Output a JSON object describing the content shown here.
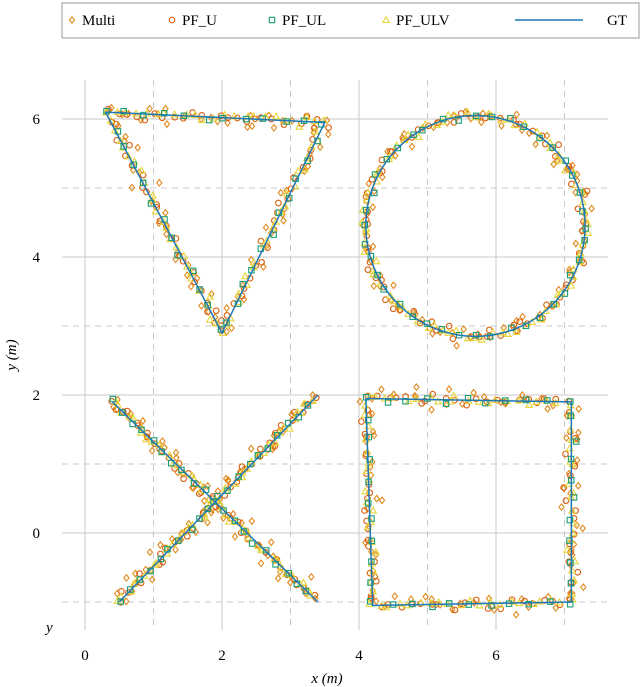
{
  "chart_data": {
    "type": "scatter",
    "xlabel": "x (m)",
    "ylabel": "y (m)",
    "stray_label": "y",
    "xlim": [
      -0.5,
      7.5
    ],
    "ylim": [
      -1.6,
      6.75
    ],
    "xticks": [
      0,
      2,
      4,
      6
    ],
    "yticks": [
      0,
      2,
      4,
      6
    ],
    "grid": "solid at integer ticks, dashed at odd integers",
    "legend": {
      "placement": "top"
    },
    "colors": {
      "multi": "#e08a1e",
      "pf_u": "#d95f0e",
      "pf_ul": "#1a9e77",
      "pf_ulv": "#e6d53a",
      "gt": "#1f77b4"
    },
    "series": [
      {
        "name": "Multi",
        "marker": "diamond",
        "color": "#e08a1e"
      },
      {
        "name": "PF_U",
        "marker": "circle",
        "color": "#d95f0e"
      },
      {
        "name": "PF_UL",
        "marker": "square",
        "color": "#1a9e77"
      },
      {
        "name": "PF_ULV",
        "marker": "triangle",
        "color": "#e6d53a"
      },
      {
        "name": "GT",
        "marker": "line",
        "color": "#1f77b4"
      }
    ],
    "ground_truth": {
      "triangle": [
        [
          0.3,
          6.1
        ],
        [
          3.5,
          5.95
        ],
        [
          2.0,
          2.9
        ],
        [
          0.3,
          6.1
        ]
      ],
      "circle": {
        "center": [
          5.7,
          4.45
        ],
        "radius": 1.6
      },
      "cross": [
        [
          [
            0.4,
            1.9
          ],
          [
            3.4,
            -1.0
          ]
        ],
        [
          [
            0.5,
            -1.0
          ],
          [
            3.4,
            2.0
          ]
        ]
      ],
      "square": [
        [
          4.1,
          1.95
        ],
        [
          7.1,
          1.9
        ],
        [
          7.1,
          -1.0
        ],
        [
          4.2,
          -1.05
        ],
        [
          4.1,
          1.95
        ]
      ]
    }
  }
}
